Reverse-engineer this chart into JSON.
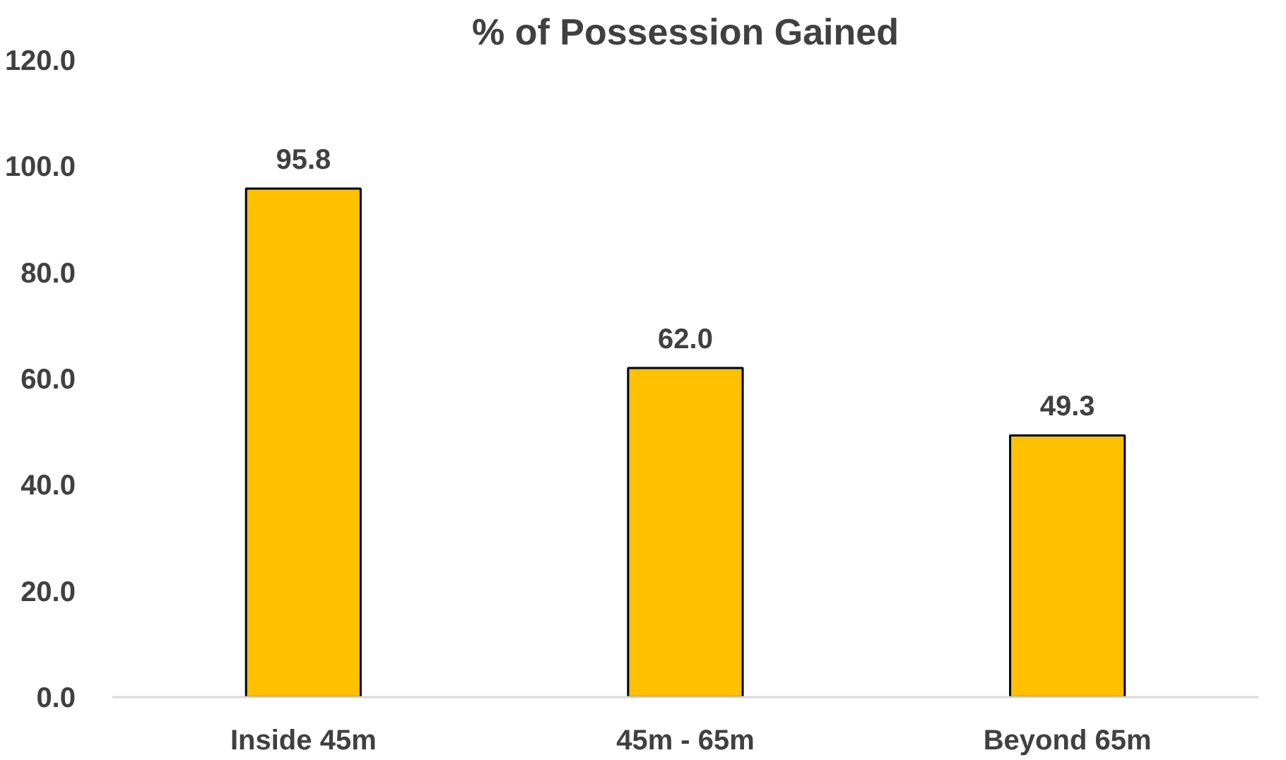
{
  "chart_data": {
    "type": "bar",
    "title": "% of Possession Gained",
    "categories": [
      "Inside 45m",
      "45m - 65m",
      "Beyond 65m"
    ],
    "values": [
      95.8,
      62.0,
      49.3
    ],
    "color": "#ffc000",
    "value_labels": [
      "95.8",
      "62.0",
      "49.3"
    ],
    "ylim": [
      0,
      120
    ],
    "yticks": [
      {
        "value": 0,
        "label": "0.0"
      },
      {
        "value": 20,
        "label": "20.0"
      },
      {
        "value": 40,
        "label": "40.0"
      },
      {
        "value": 60,
        "label": "60.0"
      },
      {
        "value": 80,
        "label": "80.0"
      },
      {
        "value": 100,
        "label": "100.0"
      },
      {
        "value": 120,
        "label": "120.0"
      }
    ],
    "grid": false
  }
}
